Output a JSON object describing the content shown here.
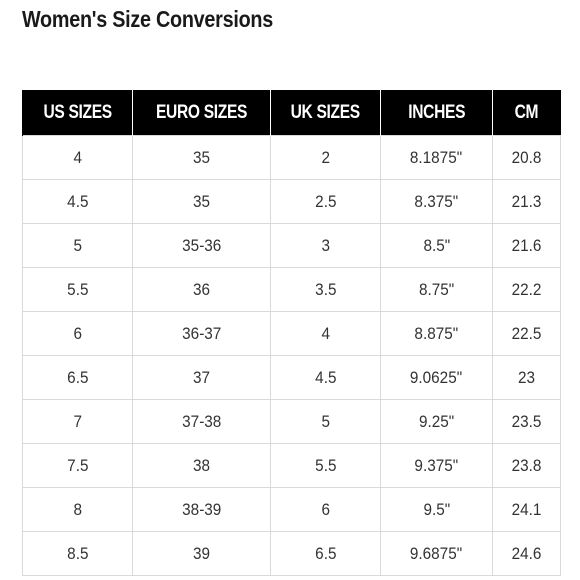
{
  "title": "Women's Size Conversions",
  "table": {
    "headers": [
      "US SIZES",
      "EURO SIZES",
      "UK SIZES",
      "INCHES",
      "CM"
    ],
    "rows": [
      [
        "4",
        "35",
        "2",
        "8.1875\"",
        "20.8"
      ],
      [
        "4.5",
        "35",
        "2.5",
        "8.375\"",
        "21.3"
      ],
      [
        "5",
        "35-36",
        "3",
        "8.5\"",
        "21.6"
      ],
      [
        "5.5",
        "36",
        "3.5",
        "8.75\"",
        "22.2"
      ],
      [
        "6",
        "36-37",
        "4",
        "8.875\"",
        "22.5"
      ],
      [
        "6.5",
        "37",
        "4.5",
        "9.0625\"",
        "23"
      ],
      [
        "7",
        "37-38",
        "5",
        "9.25\"",
        "23.5"
      ],
      [
        "7.5",
        "38",
        "5.5",
        "9.375\"",
        "23.8"
      ],
      [
        "8",
        "38-39",
        "6",
        "9.5\"",
        "24.1"
      ],
      [
        "8.5",
        "39",
        "6.5",
        "9.6875\"",
        "24.6"
      ]
    ]
  },
  "colors": {
    "header_bg": "#000000",
    "header_text": "#ffffff",
    "grid_line": "#d9d9d9"
  }
}
